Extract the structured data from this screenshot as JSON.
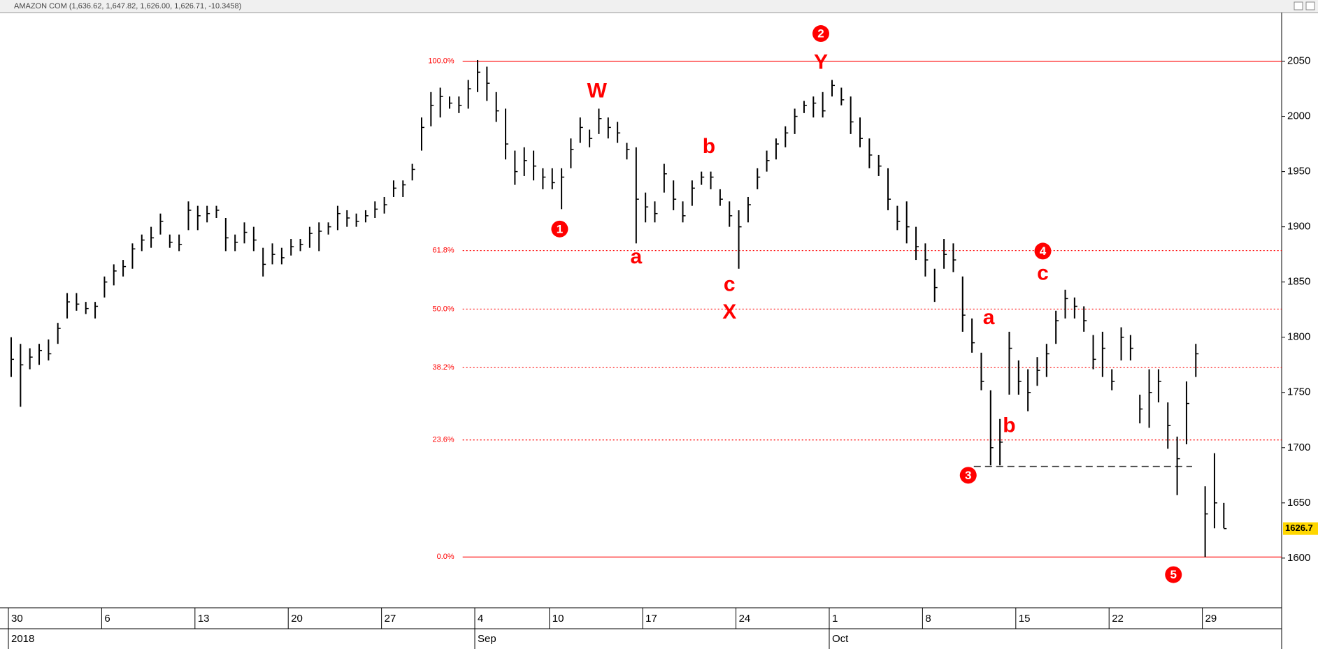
{
  "chart_data": {
    "type": "hlc",
    "title": "AMAZON COM (1,636.62, 1,647.82, 1,626.00, 1,626.71, -10.3458)",
    "color": "#000000",
    "annotation_color": "#ff0000",
    "x": [
      0,
      0.5,
      1,
      1.5,
      2,
      2.5,
      3,
      3.5,
      4,
      4.5,
      5,
      5.5,
      6,
      6.5,
      7,
      7.5,
      8,
      8.5,
      9,
      9.5,
      10,
      10.5,
      11,
      11.5,
      12,
      12.5,
      13,
      13.5,
      14,
      14.5,
      15,
      15.5,
      16,
      16.5,
      17,
      17.5,
      18,
      18.5,
      19,
      19.5,
      20,
      20.5,
      21,
      21.5,
      22,
      22.5,
      23,
      23.5,
      24,
      24.5,
      25,
      25.5,
      26,
      26.5,
      27,
      27.5,
      28,
      28.5,
      29,
      29.5,
      30,
      30.5,
      31,
      31.5,
      32,
      32.5,
      33,
      33.5,
      34,
      34.5,
      35,
      35.5,
      36,
      36.5,
      37,
      37.5,
      38,
      38.5,
      39,
      39.5,
      40,
      40.5,
      41,
      41.5,
      42,
      42.5,
      43,
      43.5,
      44,
      44.5,
      45,
      45.5,
      46,
      46.5,
      47,
      47.5,
      48,
      48.5,
      49,
      49.5,
      50,
      50.5,
      51,
      51.5,
      52,
      52.5,
      53,
      53.5,
      54,
      54.5,
      55,
      55.5,
      56,
      56.5,
      57,
      57.5,
      58,
      58.5,
      59,
      59.5,
      60,
      60.5,
      61,
      61.5,
      62,
      62.5,
      63,
      63.5,
      64,
      64.5,
      65
    ],
    "high": [
      1800,
      1794,
      1790,
      1794,
      1798,
      1813,
      1840,
      1840,
      1832,
      1832,
      1855,
      1866,
      1870,
      1885,
      1893,
      1900,
      1912,
      1893,
      1893,
      1923,
      1919,
      1919,
      1919,
      1908,
      1893,
      1904,
      1900,
      1881,
      1885,
      1881,
      1889,
      1889,
      1900,
      1904,
      1904,
      1919,
      1915,
      1912,
      1915,
      1923,
      1927,
      1942,
      1942,
      1957,
      1999,
      2022,
      2026,
      2018,
      2018,
      2033,
      2051,
      2045,
      2022,
      2007,
      1969,
      1972,
      1969,
      1953,
      1953,
      1953,
      1980,
      1999,
      1988,
      2007,
      1999,
      1995,
      1976,
      1972,
      1931,
      1923,
      1957,
      1942,
      1923,
      1942,
      1950,
      1950,
      1934,
      1923,
      1915,
      1927,
      1953,
      1969,
      1980,
      1991,
      2007,
      2014,
      2018,
      2022,
      2033,
      2026,
      2018,
      1999,
      1980,
      1965,
      1953,
      1919,
      1923,
      1900,
      1885,
      1862,
      1889,
      1885,
      1855,
      1817,
      1786,
      1752,
      1726,
      1805,
      1779,
      1771,
      1782,
      1794,
      1824,
      1843,
      1836,
      1828,
      1802,
      1805,
      1771,
      1809,
      1802,
      1748,
      1771,
      1771,
      1741,
      1710,
      1760,
      1794,
      1665,
      1695,
      1650
    ],
    "low": [
      1764,
      1737,
      1771,
      1775,
      1779,
      1794,
      1817,
      1824,
      1821,
      1817,
      1836,
      1847,
      1855,
      1862,
      1878,
      1881,
      1893,
      1881,
      1878,
      1897,
      1897,
      1904,
      1908,
      1878,
      1878,
      1885,
      1878,
      1855,
      1866,
      1866,
      1874,
      1878,
      1881,
      1878,
      1893,
      1897,
      1900,
      1900,
      1904,
      1908,
      1912,
      1927,
      1927,
      1942,
      1969,
      1991,
      1999,
      2007,
      2003,
      2007,
      2022,
      2014,
      1995,
      1961,
      1938,
      1946,
      1942,
      1934,
      1934,
      1916,
      1953,
      1976,
      1972,
      1984,
      1980,
      1976,
      1961,
      1885,
      1904,
      1904,
      1931,
      1915,
      1904,
      1919,
      1938,
      1934,
      1919,
      1900,
      1862,
      1904,
      1934,
      1950,
      1961,
      1972,
      1984,
      2003,
      1999,
      1999,
      2018,
      2010,
      1984,
      1972,
      1953,
      1946,
      1915,
      1897,
      1885,
      1870,
      1855,
      1832,
      1862,
      1859,
      1805,
      1786,
      1752,
      1684,
      1684,
      1748,
      1748,
      1733,
      1756,
      1764,
      1794,
      1817,
      1817,
      1805,
      1771,
      1764,
      1752,
      1779,
      1779,
      1722,
      1718,
      1741,
      1699,
      1657,
      1703,
      1764,
      1601,
      1627,
      1627
    ],
    "close": [
      1780,
      1775,
      1782,
      1788,
      1785,
      1808,
      1832,
      1830,
      1826,
      1828,
      1850,
      1860,
      1864,
      1880,
      1888,
      1890,
      1905,
      1886,
      1884,
      1915,
      1910,
      1912,
      1915,
      1890,
      1886,
      1895,
      1888,
      1866,
      1875,
      1872,
      1882,
      1884,
      1894,
      1896,
      1900,
      1912,
      1908,
      1905,
      1910,
      1916,
      1920,
      1935,
      1938,
      1952,
      1990,
      2010,
      2018,
      2012,
      2010,
      2025,
      2040,
      2030,
      2005,
      1975,
      1950,
      1960,
      1955,
      1945,
      1940,
      1945,
      1970,
      1990,
      1980,
      1998,
      1990,
      1985,
      1970,
      1925,
      1918,
      1912,
      1948,
      1925,
      1910,
      1935,
      1945,
      1945,
      1925,
      1910,
      1900,
      1920,
      1945,
      1960,
      1975,
      1985,
      2000,
      2010,
      2012,
      2005,
      2028,
      2015,
      1995,
      1980,
      1965,
      1955,
      1925,
      1905,
      1900,
      1882,
      1870,
      1845,
      1875,
      1870,
      1820,
      1795,
      1760,
      1700,
      1705,
      1790,
      1760,
      1750,
      1770,
      1785,
      1815,
      1835,
      1828,
      1815,
      1780,
      1790,
      1760,
      1800,
      1790,
      1735,
      1750,
      1760,
      1720,
      1690,
      1740,
      1785,
      1640,
      1650,
      1626.71
    ],
    "last_label": "1626.7",
    "xlim": [
      -0.6,
      68.1
    ],
    "xticks": [
      {
        "value": 0,
        "label": "30"
      },
      {
        "value": 5,
        "label": "6"
      },
      {
        "value": 10,
        "label": "13"
      },
      {
        "value": 15,
        "label": "20"
      },
      {
        "value": 20,
        "label": "27"
      },
      {
        "value": 25,
        "label": "4"
      },
      {
        "value": 29,
        "label": "10"
      },
      {
        "value": 34,
        "label": "17"
      },
      {
        "value": 39,
        "label": "24"
      },
      {
        "value": 44,
        "label": "1"
      },
      {
        "value": 49,
        "label": "8"
      },
      {
        "value": 54,
        "label": "15"
      },
      {
        "value": 59,
        "label": "22"
      },
      {
        "value": 64,
        "label": "29"
      }
    ],
    "month_ticks": [
      {
        "value": 0,
        "label": "2018"
      },
      {
        "value": 25,
        "label": "Sep"
      },
      {
        "value": 44,
        "label": "Oct"
      }
    ],
    "ylim": [
      1555,
      2094
    ],
    "yticks": [
      1600,
      1650,
      1700,
      1750,
      1800,
      1850,
      1900,
      1950,
      2000,
      2050
    ],
    "fib_x_start": 24.2,
    "fib_levels": [
      {
        "value": 2050,
        "label": "100.0%"
      },
      {
        "value": 1878.5,
        "label": "61.8%"
      },
      {
        "value": 1825.5,
        "label": "50.0%"
      },
      {
        "value": 1772.5,
        "label": "38.2%"
      },
      {
        "value": 1707,
        "label": "23.6%"
      },
      {
        "value": 1601,
        "label": "0.0%"
      }
    ],
    "dashed_line": {
      "x": [
        51.6,
        63.3
      ],
      "y": [
        1683,
        1683
      ]
    },
    "annotations": [
      {
        "text": "1",
        "x": 29.4,
        "y": 1898,
        "circled": true
      },
      {
        "text": "W",
        "x": 31.4,
        "y": 2022,
        "circled": false
      },
      {
        "text": "a",
        "x": 33.5,
        "y": 1872,
        "circled": false
      },
      {
        "text": "b",
        "x": 37.4,
        "y": 1972,
        "circled": false
      },
      {
        "text": "c",
        "x": 38.5,
        "y": 1847,
        "circled": false
      },
      {
        "text": "X",
        "x": 38.5,
        "y": 1822,
        "circled": false
      },
      {
        "text": "2",
        "x": 43.4,
        "y": 2075,
        "circled": true
      },
      {
        "text": "Y",
        "x": 43.4,
        "y": 2048,
        "circled": false
      },
      {
        "text": "3",
        "x": 51.3,
        "y": 1675,
        "circled": true
      },
      {
        "text": "a",
        "x": 52.4,
        "y": 1817,
        "circled": false
      },
      {
        "text": "b",
        "x": 53.5,
        "y": 1719,
        "circled": false
      },
      {
        "text": "4",
        "x": 55.3,
        "y": 1878,
        "circled": true
      },
      {
        "text": "c",
        "x": 55.3,
        "y": 1857,
        "circled": false
      },
      {
        "text": "5",
        "x": 62.3,
        "y": 1585,
        "circled": true
      }
    ]
  }
}
